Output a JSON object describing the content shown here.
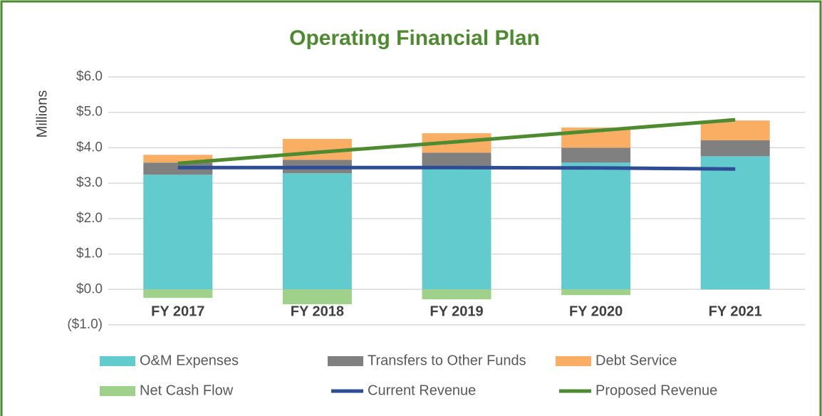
{
  "chart_data": {
    "type": "stacked-bar-line",
    "title": "Operating Financial Plan",
    "y_label": "Millions",
    "categories": [
      "FY 2017",
      "FY 2018",
      "FY 2019",
      "FY 2020",
      "FY 2021"
    ],
    "series": [
      {
        "name": "O&M Expenses",
        "type": "bar",
        "color": "#62cbce",
        "values": [
          3.24,
          3.28,
          3.44,
          3.58,
          3.76
        ]
      },
      {
        "name": "Transfers to Other Funds",
        "type": "bar",
        "color": "#808080",
        "values": [
          0.34,
          0.38,
          0.42,
          0.42,
          0.45
        ]
      },
      {
        "name": "Debt Service",
        "type": "bar",
        "color": "#f9ae64",
        "values": [
          0.22,
          0.59,
          0.55,
          0.57,
          0.56
        ]
      },
      {
        "name": "Net Cash Flow",
        "type": "bar",
        "color": "#9fd18a",
        "values": [
          -0.24,
          -0.42,
          -0.28,
          -0.16,
          0
        ]
      },
      {
        "name": "Current Revenue",
        "type": "line",
        "color": "#2e4d94",
        "values": [
          3.44,
          3.44,
          3.44,
          3.43,
          3.4
        ]
      },
      {
        "name": "Proposed Revenue",
        "type": "line",
        "color": "#4e8a30",
        "values": [
          3.56,
          3.87,
          4.17,
          4.48,
          4.79
        ]
      }
    ],
    "ylim": [
      -1,
      6
    ],
    "yticks": [
      {
        "value": -1,
        "label": "($1.0)"
      },
      {
        "value": 0,
        "label": "$0.0"
      },
      {
        "value": 1,
        "label": "$1.0"
      },
      {
        "value": 2,
        "label": "$2.0"
      },
      {
        "value": 3,
        "label": "$3.0"
      },
      {
        "value": 4,
        "label": "$4.0"
      },
      {
        "value": 5,
        "label": "$5.0"
      },
      {
        "value": 6,
        "label": "$6.0"
      }
    ],
    "grid": true,
    "legend": "bottom"
  }
}
